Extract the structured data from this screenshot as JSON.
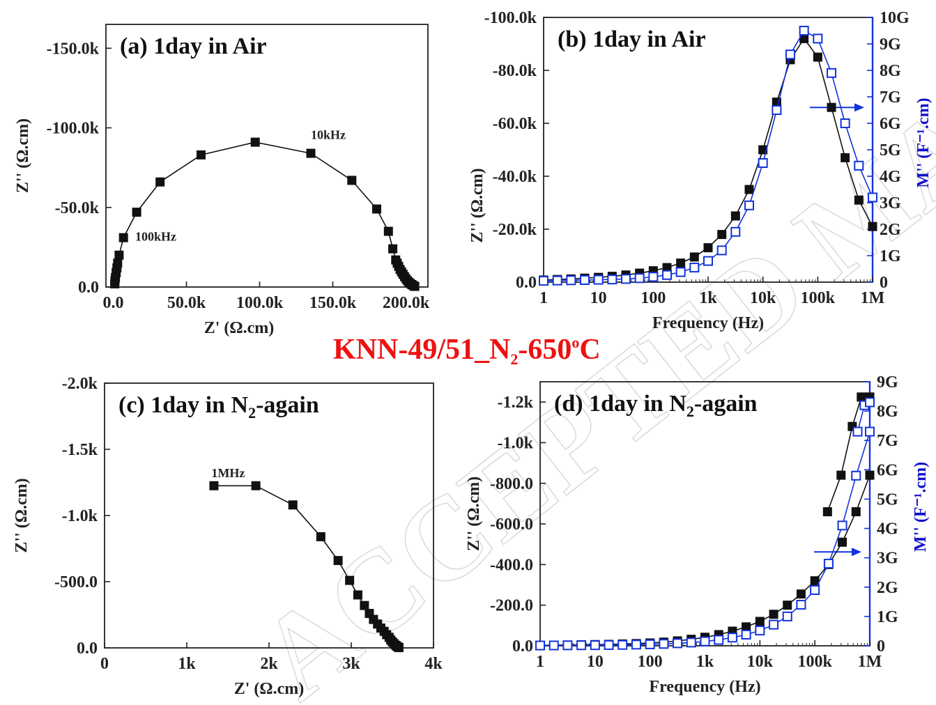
{
  "main_title": {
    "prefix": "KNN-49/51_N",
    "sub": "2",
    "mid": "-650",
    "sup": "o",
    "suffix": "C"
  },
  "watermark": "ACCEPTED MANUSCRIPT",
  "chart_data": [
    {
      "id": "a",
      "type": "scatter",
      "title": "(a) 1day in Air",
      "title_parts": {
        "label": "(a)",
        "text": "1day in Air"
      },
      "xlabel": "Z' (Ω.cm)",
      "ylabel": "Z'' (Ω.cm)",
      "xlim": [
        -5000,
        215000
      ],
      "ylim": [
        0,
        -165000
      ],
      "xticks": [
        0,
        50000,
        100000,
        150000,
        200000
      ],
      "xtick_labels": [
        "0.0",
        "50.0k",
        "100.0k",
        "150.0k",
        "200.0k"
      ],
      "yticks": [
        0,
        -50000,
        -100000,
        -150000
      ],
      "ytick_labels": [
        "0.0",
        "-50.0k",
        "-100.0k",
        "-150.0k"
      ],
      "annotations": [
        {
          "text": "10kHz",
          "x": 135000,
          "y": -93000
        },
        {
          "text": "100kHz",
          "x": 15000,
          "y": -29000
        }
      ],
      "series": [
        {
          "color": "#111111",
          "marker": "square-filled",
          "x": [
            1000,
            1200,
            1500,
            2000,
            2500,
            3000,
            4000,
            7000,
            16000,
            32000,
            60000,
            97000,
            135000,
            163000,
            180000,
            188000,
            191000,
            193000,
            194000,
            195000,
            196000,
            197000,
            198000,
            199000,
            200000,
            201000,
            202000,
            203000,
            204000,
            205000,
            206000
          ],
          "y": [
            -2000,
            -4000,
            -6000,
            -9000,
            -12000,
            -15000,
            -20000,
            -31000,
            -47000,
            -66000,
            -83000,
            -91000,
            -84000,
            -67000,
            -49000,
            -35000,
            -24000,
            -17000,
            -15000,
            -13000,
            -11000,
            -9500,
            -8000,
            -6500,
            -5200,
            -4000,
            -3000,
            -2200,
            -1500,
            -900,
            -400
          ]
        }
      ]
    },
    {
      "id": "b",
      "type": "line",
      "title": "(b) 1day in Air",
      "title_parts": {
        "label": "(b)",
        "text": "1day in Air"
      },
      "xlabel": "Frequency (Hz)",
      "ylabel": "Z'' (Ω.cm)",
      "y2label": "M'' (F⁻¹.cm)",
      "xscale": "log",
      "xlim": [
        1,
        1000000
      ],
      "ylim": [
        0,
        -100000
      ],
      "y2lim": [
        0,
        10
      ],
      "xtick_labels": [
        "1",
        "10",
        "100",
        "1k",
        "10k",
        "100k",
        "1M"
      ],
      "ytick_labels": [
        "0.0",
        "-20.0k",
        "-40.0k",
        "-60.0k",
        "-80.0k",
        "-100.0k"
      ],
      "y2tick_labels": [
        "0",
        "1G",
        "2G",
        "3G",
        "4G",
        "5G",
        "6G",
        "7G",
        "8G",
        "9G",
        "10G"
      ],
      "arrow": "right",
      "series": [
        {
          "axis": "left",
          "color": "#111111",
          "marker": "square-filled",
          "x": [
            1,
            1.78,
            3.16,
            5.62,
            10,
            17.8,
            31.6,
            56.2,
            100,
            178,
            316,
            562,
            1000,
            1780,
            3160,
            5620,
            10000,
            17800,
            31600,
            56200,
            100000,
            178000,
            316000,
            562000,
            1000000
          ],
          "y": [
            -800,
            -1000,
            -1200,
            -1500,
            -1800,
            -2200,
            -2700,
            -3400,
            -4300,
            -5500,
            -7200,
            -9500,
            -13000,
            -18000,
            -25000,
            -35000,
            -50000,
            -68000,
            -84000,
            -92000,
            -85000,
            -66000,
            -47000,
            -31000,
            -21000
          ]
        },
        {
          "axis": "right",
          "color": "#1133dd",
          "marker": "square-open",
          "x": [
            1,
            1.78,
            3.16,
            5.62,
            10,
            17.8,
            31.6,
            56.2,
            100,
            178,
            316,
            562,
            1000,
            1780,
            3160,
            5620,
            10000,
            17800,
            31600,
            56200,
            100000,
            178000,
            316000,
            562000,
            1000000
          ],
          "y": [
            0.05,
            0.06,
            0.07,
            0.08,
            0.09,
            0.1,
            0.12,
            0.15,
            0.2,
            0.27,
            0.38,
            0.55,
            0.8,
            1.2,
            1.9,
            2.9,
            4.5,
            6.5,
            8.6,
            9.5,
            9.2,
            7.9,
            6.0,
            4.4,
            3.2
          ]
        }
      ]
    },
    {
      "id": "c",
      "type": "scatter",
      "title": "(c) 1day in N2-again",
      "title_parts": {
        "label": "(c)",
        "text": "1day in N",
        "sub": "2",
        "after": "-again"
      },
      "xlabel": "Z' (Ω.cm)",
      "ylabel": "Z'' (Ω.cm)",
      "xlim": [
        0,
        4000
      ],
      "ylim": [
        0,
        -2000
      ],
      "xtick_labels": [
        "0",
        "1k",
        "2k",
        "3k",
        "4k"
      ],
      "ytick_labels": [
        "0.0",
        "-500.0",
        "-1.0k",
        "-1.5k",
        "-2.0k"
      ],
      "annotations": [
        {
          "text": "1MHz",
          "x": 1300,
          "y": -1290
        }
      ],
      "series": [
        {
          "color": "#111111",
          "marker": "square-filled",
          "x": [
            1330,
            1840,
            2290,
            2630,
            2840,
            2980,
            3080,
            3160,
            3220,
            3270,
            3320,
            3360,
            3400,
            3430,
            3460,
            3480,
            3500,
            3520,
            3540,
            3555,
            3570,
            3580
          ],
          "y": [
            -1225,
            -1225,
            -1080,
            -840,
            -660,
            -510,
            -400,
            -320,
            -260,
            -215,
            -180,
            -150,
            -125,
            -100,
            -80,
            -60,
            -45,
            -32,
            -20,
            -12,
            -6,
            -2
          ]
        }
      ]
    },
    {
      "id": "d",
      "type": "line",
      "title": "(d) 1day in N2-again",
      "title_parts": {
        "label": "(d)",
        "text": "1day in N",
        "sub": "2",
        "after": "-again"
      },
      "xlabel": "Frequency (Hz)",
      "ylabel": "Z'' (Ω.cm)",
      "y2label": "M'' (F⁻¹.cm)",
      "xscale": "log",
      "xlim": [
        1,
        1000000
      ],
      "ylim": [
        0,
        -1300
      ],
      "y2lim": [
        0,
        9
      ],
      "xtick_labels": [
        "1",
        "10",
        "100",
        "1k",
        "10k",
        "100k",
        "1M"
      ],
      "ytick_labels": [
        "0.0",
        "-200.0",
        "-400.0",
        "-600.0",
        "-800.0",
        "-1.0k",
        "-1.2k"
      ],
      "y2tick_labels": [
        "0",
        "1G",
        "2G",
        "3G",
        "4G",
        "5G",
        "6G",
        "7G",
        "8G",
        "9G"
      ],
      "arrow": "right",
      "series": [
        {
          "axis": "left",
          "color": "#111111",
          "marker": "square-filled",
          "x": [
            1,
            1.78,
            3.16,
            5.62,
            10,
            17.8,
            31.6,
            56.2,
            100,
            178,
            316,
            562,
            1000,
            1780,
            3160,
            5620,
            10000,
            17800,
            31600,
            56200,
            100000,
            178000,
            316000,
            562000,
            1000000
          ],
          "y": [
            -2,
            -3,
            -4,
            -5,
            -6,
            -7,
            -9,
            -11,
            -14,
            -18,
            -24,
            -32,
            -42,
            -55,
            -72,
            -93,
            -120,
            -155,
            -200,
            -255,
            -320,
            -400,
            -510,
            -660,
            -840
          ]
        },
        {
          "axis": "left",
          "color": "#111111",
          "marker": "square-filled",
          "x": [
            170000,
            300000,
            480000,
            700000,
            1000000
          ],
          "y": [
            -660,
            -840,
            -1080,
            -1225,
            -1225
          ]
        },
        {
          "axis": "right",
          "color": "#1133dd",
          "marker": "square-open",
          "x": [
            1,
            1.78,
            3.16,
            5.62,
            10,
            17.8,
            31.6,
            56.2,
            100,
            178,
            316,
            562,
            1000,
            1780,
            3160,
            5620,
            10000,
            17800,
            31600,
            56200,
            100000,
            178000,
            316000,
            562000,
            1000000
          ],
          "y": [
            0.01,
            0.012,
            0.015,
            0.018,
            0.02,
            0.025,
            0.03,
            0.04,
            0.05,
            0.065,
            0.085,
            0.11,
            0.15,
            0.2,
            0.28,
            0.38,
            0.52,
            0.72,
            1.0,
            1.4,
            1.9,
            2.8,
            4.1,
            5.8,
            7.3
          ]
        },
        {
          "axis": "right",
          "color": "#1133dd",
          "marker": "square-open",
          "x": [
            600000,
            800000,
            1000000
          ],
          "y": [
            7.3,
            8.2,
            8.3
          ]
        }
      ]
    }
  ]
}
